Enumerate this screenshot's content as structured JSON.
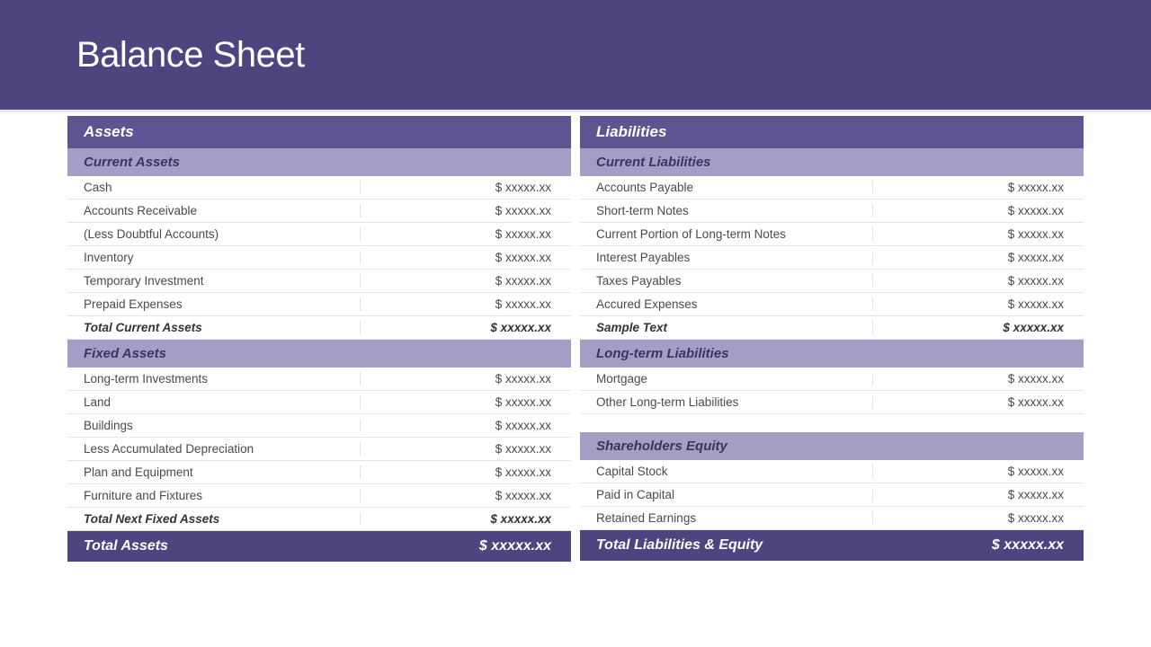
{
  "colors": {
    "header_bg": "#4d457f",
    "section_bg": "#5d5592",
    "subsection_bg": "#a39ec6",
    "grand_total_bg": "#4d457f",
    "row_border": "#e5e5e5",
    "text": "#4a4a4a",
    "white": "#ffffff"
  },
  "page_title": "Balance Sheet",
  "left": {
    "section_title": "Assets",
    "sub1_title": "Current Assets",
    "sub1_rows": [
      {
        "label": "Cash",
        "value": "$ xxxxx.xx"
      },
      {
        "label": "Accounts Receivable",
        "value": "$ xxxxx.xx"
      },
      {
        "label": "(Less Doubtful Accounts)",
        "value": "$ xxxxx.xx"
      },
      {
        "label": "Inventory",
        "value": "$ xxxxx.xx"
      },
      {
        "label": "Temporary Investment",
        "value": "$ xxxxx.xx"
      },
      {
        "label": "Prepaid Expenses",
        "value": "$ xxxxx.xx"
      }
    ],
    "sub1_total": {
      "label": "Total Current Assets",
      "value": "$ xxxxx.xx"
    },
    "sub2_title": "Fixed Assets",
    "sub2_rows": [
      {
        "label": "Long-term Investments",
        "value": "$ xxxxx.xx"
      },
      {
        "label": "Land",
        "value": "$ xxxxx.xx"
      },
      {
        "label": "Buildings",
        "value": "$ xxxxx.xx"
      },
      {
        "label": "Less Accumulated Depreciation",
        "value": "$ xxxxx.xx"
      },
      {
        "label": "Plan and Equipment",
        "value": "$ xxxxx.xx"
      },
      {
        "label": "Furniture and Fixtures",
        "value": "$ xxxxx.xx"
      }
    ],
    "sub2_total": {
      "label": "Total Next Fixed Assets",
      "value": "$ xxxxx.xx"
    },
    "grand_total": {
      "label": "Total Assets",
      "value": "$ xxxxx.xx"
    }
  },
  "right": {
    "section_title": "Liabilities",
    "sub1_title": "Current Liabilities",
    "sub1_rows": [
      {
        "label": "Accounts Payable",
        "value": "$ xxxxx.xx"
      },
      {
        "label": "Short-term Notes",
        "value": "$ xxxxx.xx"
      },
      {
        "label": "Current Portion of Long-term Notes",
        "value": "$ xxxxx.xx"
      },
      {
        "label": "Interest Payables",
        "value": "$ xxxxx.xx"
      },
      {
        "label": "Taxes Payables",
        "value": "$ xxxxx.xx"
      },
      {
        "label": "Accured Expenses",
        "value": "$ xxxxx.xx"
      }
    ],
    "sub1_total": {
      "label": "Sample Text",
      "value": "$ xxxxx.xx"
    },
    "sub2_title": "Long-term Liabilities",
    "sub2_rows": [
      {
        "label": "Mortgage",
        "value": "$ xxxxx.xx"
      },
      {
        "label": "Other Long-term Liabilities",
        "value": "$ xxxxx.xx"
      }
    ],
    "sub3_title": "Shareholders Equity",
    "sub3_rows": [
      {
        "label": "Capital Stock",
        "value": "$ xxxxx.xx"
      },
      {
        "label": "Paid in  Capital",
        "value": "$ xxxxx.xx"
      },
      {
        "label": "Retained Earnings",
        "value": "$ xxxxx.xx"
      }
    ],
    "grand_total": {
      "label": "Total Liabilities & Equity",
      "value": "$ xxxxx.xx"
    }
  }
}
